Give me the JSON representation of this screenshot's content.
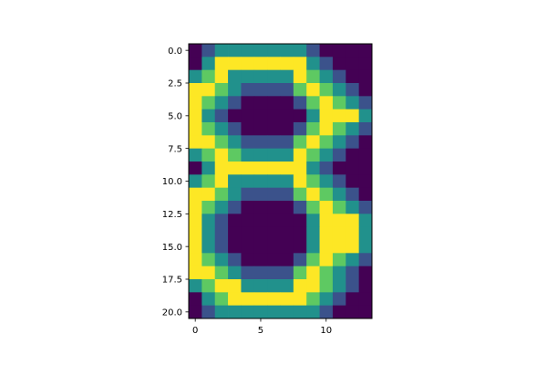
{
  "chart_data": {
    "type": "heatmap",
    "title": "",
    "xlabel": "",
    "ylabel": "",
    "colormap": "viridis",
    "value_range": [
      0,
      4
    ],
    "palette": [
      "#440154",
      "#3b528b",
      "#21918c",
      "#5ec962",
      "#fde725"
    ],
    "xlim": [
      -0.5,
      13.5
    ],
    "ylim": [
      20.5,
      -0.5
    ],
    "x_ticks": [
      0,
      5,
      10
    ],
    "x_tick_labels": [
      "0",
      "5",
      "10"
    ],
    "y_ticks": [
      0,
      2.5,
      5,
      7.5,
      10,
      12.5,
      15,
      17.5,
      20
    ],
    "y_tick_labels": [
      "0.0",
      "2.5",
      "5.0",
      "7.5",
      "10.0",
      "12.5",
      "15.0",
      "17.5",
      "20.0"
    ],
    "grid": false,
    "cols": 14,
    "rows": 21,
    "matrix": [
      [
        0,
        1,
        2,
        2,
        2,
        2,
        2,
        2,
        2,
        1,
        0,
        0,
        0,
        0
      ],
      [
        0,
        2,
        4,
        4,
        4,
        4,
        4,
        4,
        4,
        2,
        1,
        0,
        0,
        0
      ],
      [
        2,
        3,
        4,
        2,
        2,
        2,
        2,
        2,
        4,
        3,
        2,
        1,
        0,
        0
      ],
      [
        4,
        4,
        3,
        2,
        1,
        1,
        1,
        1,
        3,
        4,
        3,
        2,
        1,
        0
      ],
      [
        4,
        3,
        2,
        1,
        0,
        0,
        0,
        0,
        1,
        3,
        4,
        3,
        2,
        1
      ],
      [
        4,
        2,
        1,
        0,
        0,
        0,
        0,
        0,
        0,
        2,
        4,
        4,
        4,
        2
      ],
      [
        4,
        3,
        2,
        1,
        0,
        0,
        0,
        0,
        1,
        3,
        4,
        3,
        2,
        1
      ],
      [
        4,
        4,
        3,
        2,
        1,
        1,
        1,
        1,
        3,
        4,
        3,
        2,
        1,
        0
      ],
      [
        2,
        3,
        4,
        3,
        2,
        2,
        2,
        2,
        4,
        3,
        2,
        1,
        0,
        0
      ],
      [
        0,
        2,
        4,
        4,
        4,
        4,
        4,
        4,
        4,
        2,
        1,
        0,
        0,
        0
      ],
      [
        2,
        3,
        4,
        2,
        2,
        2,
        2,
        2,
        4,
        3,
        2,
        1,
        0,
        0
      ],
      [
        4,
        4,
        3,
        2,
        1,
        1,
        1,
        1,
        3,
        4,
        3,
        2,
        1,
        0
      ],
      [
        4,
        3,
        2,
        1,
        0,
        0,
        0,
        0,
        1,
        3,
        4,
        3,
        2,
        1
      ],
      [
        4,
        2,
        1,
        0,
        0,
        0,
        0,
        0,
        0,
        2,
        4,
        4,
        4,
        2
      ],
      [
        4,
        2,
        1,
        0,
        0,
        0,
        0,
        0,
        0,
        2,
        4,
        4,
        4,
        2
      ],
      [
        4,
        2,
        1,
        0,
        0,
        0,
        0,
        0,
        0,
        2,
        4,
        4,
        4,
        2
      ],
      [
        4,
        3,
        2,
        1,
        0,
        0,
        0,
        0,
        1,
        3,
        4,
        3,
        2,
        1
      ],
      [
        4,
        4,
        3,
        2,
        1,
        1,
        1,
        1,
        3,
        4,
        3,
        2,
        1,
        0
      ],
      [
        2,
        3,
        4,
        4,
        2,
        2,
        2,
        2,
        4,
        4,
        3,
        2,
        1,
        0
      ],
      [
        0,
        2,
        3,
        4,
        4,
        4,
        4,
        4,
        4,
        3,
        2,
        1,
        0,
        0
      ],
      [
        0,
        1,
        2,
        2,
        2,
        2,
        2,
        2,
        2,
        2,
        1,
        0,
        0,
        0
      ]
    ]
  }
}
